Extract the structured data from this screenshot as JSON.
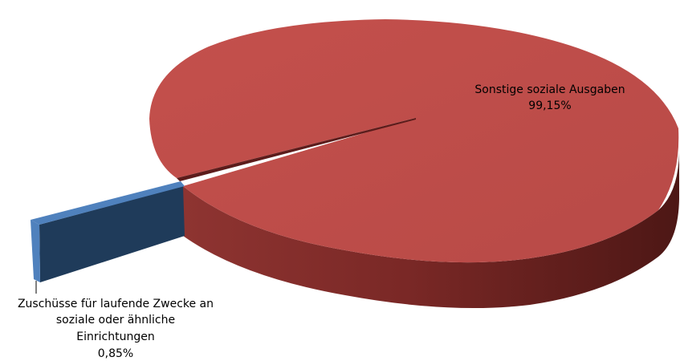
{
  "chart_data": {
    "type": "pie",
    "style": "3d-exploded",
    "slices": [
      {
        "label_lines": [
          "Sonstige soziale Ausgaben"
        ],
        "percent_text": "99,15%",
        "value": 99.15,
        "color": "#c0504d"
      },
      {
        "label_lines": [
          "Zuschüsse für laufende Zwecke an",
          "soziale oder ähnliche",
          "Einrichtungen"
        ],
        "percent_text": "0,85%",
        "value": 0.85,
        "color": "#4f81bd"
      }
    ],
    "legend": "none"
  }
}
